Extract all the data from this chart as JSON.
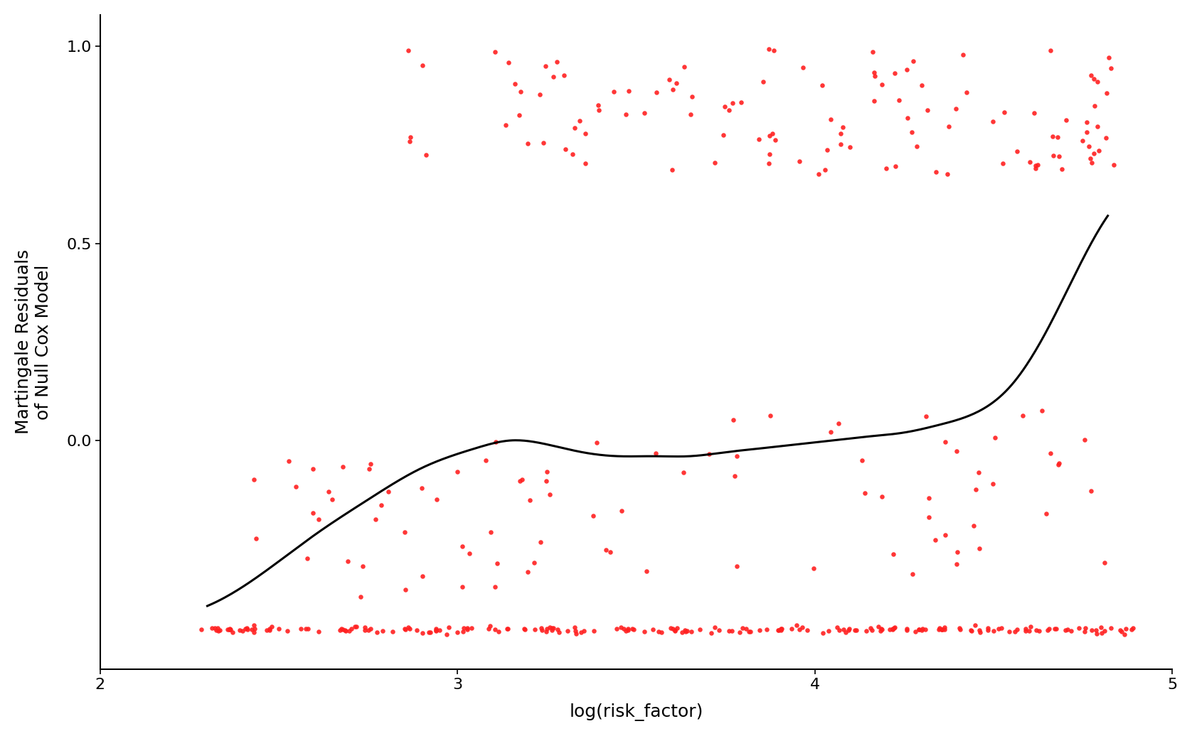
{
  "title": "",
  "xlabel": "log(risk_factor)",
  "ylabel": "Martingale Residuals\nof Null Cox Model",
  "xlim": [
    2.0,
    5.0
  ],
  "ylim": [
    -0.58,
    1.08
  ],
  "yticks": [
    0.0,
    0.5,
    1.0
  ],
  "xticks": [
    2,
    3,
    4,
    5
  ],
  "dot_color": "#FF2020",
  "line_color": "#000000",
  "background_color": "#FFFFFF",
  "dot_size": 22,
  "dot_alpha": 0.9,
  "figsize": [
    16.76,
    10.36
  ],
  "dpi": 100,
  "smooth_x": [
    2.3,
    2.45,
    2.6,
    2.75,
    2.9,
    3.05,
    3.15,
    3.25,
    3.35,
    3.45,
    3.55,
    3.65,
    3.75,
    3.85,
    3.95,
    4.05,
    4.15,
    4.25,
    4.35,
    4.45,
    4.55,
    4.65,
    4.75,
    4.82
  ],
  "smooth_y": [
    -0.42,
    -0.34,
    -0.24,
    -0.15,
    -0.07,
    -0.02,
    0.0,
    -0.01,
    -0.03,
    -0.04,
    -0.04,
    -0.04,
    -0.03,
    -0.02,
    -0.01,
    0.0,
    0.01,
    0.02,
    0.04,
    0.07,
    0.14,
    0.28,
    0.46,
    0.57
  ]
}
